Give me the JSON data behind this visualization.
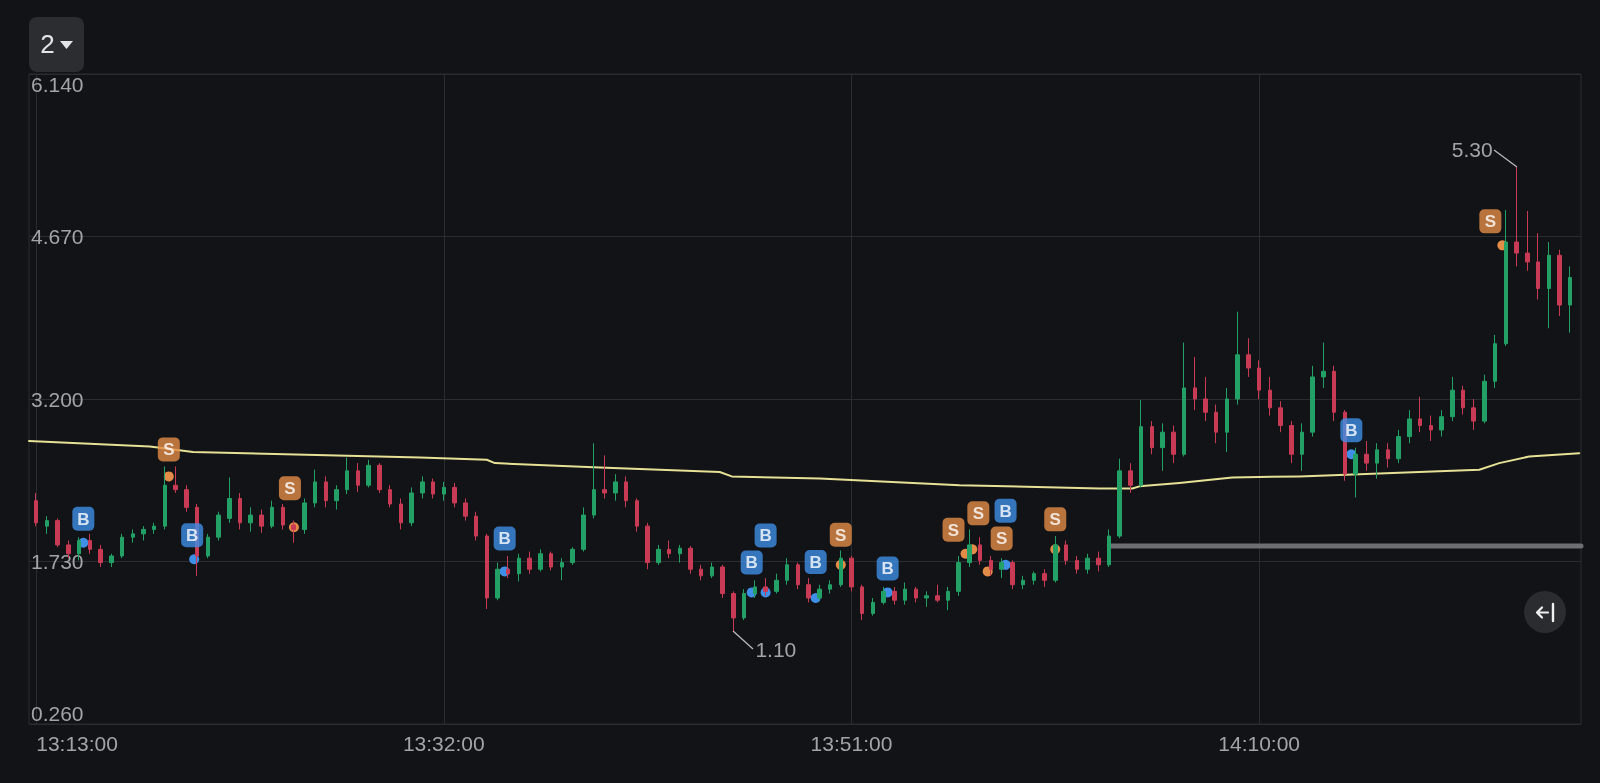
{
  "chart_data": {
    "type": "candlestick",
    "x": [
      13.2167,
      13.225,
      13.2333,
      13.2417,
      13.25,
      13.2583,
      13.2667,
      13.275,
      13.2833,
      13.2917,
      13.3,
      13.3083,
      13.3167,
      13.325,
      13.3333,
      13.3417,
      13.35,
      13.3583,
      13.3667,
      13.375,
      13.3833,
      13.3917,
      13.4,
      13.4083,
      13.4167,
      13.425,
      13.4333,
      13.4417,
      13.45,
      13.4583,
      13.4667,
      13.475,
      13.4833,
      13.4917,
      13.5,
      13.5083,
      13.5167,
      13.525,
      13.5333,
      13.5417,
      13.55,
      13.5583,
      13.5667,
      13.575,
      13.5833,
      13.5917,
      13.6,
      13.6083,
      13.6167,
      13.625,
      13.6333,
      13.6417,
      13.65,
      13.6583,
      13.6667,
      13.675,
      13.6833,
      13.6917,
      13.7,
      13.7083,
      13.7167,
      13.725,
      13.7333,
      13.7417,
      13.75,
      13.7583,
      13.7667,
      13.775,
      13.7833,
      13.7917,
      13.8,
      13.8083,
      13.8167,
      13.825,
      13.8333,
      13.8417,
      13.85,
      13.8583,
      13.8667,
      13.875,
      13.8833,
      13.8917,
      13.9,
      13.9083,
      13.9167,
      13.925,
      13.9333,
      13.9417,
      13.95,
      13.9583,
      13.9667,
      13.975,
      13.9833,
      13.9917,
      14.0,
      14.0083,
      14.0167,
      14.025,
      14.0333,
      14.0417,
      14.05,
      14.0583,
      14.0667,
      14.075,
      14.0833,
      14.0917,
      14.1,
      14.1083,
      14.1167,
      14.125,
      14.1333,
      14.1417,
      14.15,
      14.1583,
      14.1667,
      14.175,
      14.1833,
      14.1917,
      14.2,
      14.2083,
      14.2167,
      14.225,
      14.2333,
      14.2417,
      14.25,
      14.2583,
      14.2667,
      14.275,
      14.2833,
      14.2917,
      14.3,
      14.3083,
      14.3167,
      14.325,
      14.3333,
      14.3417,
      14.35,
      14.3583,
      14.3667,
      14.375,
      14.3833,
      14.3917,
      14.4,
      14.4083
    ],
    "ohlc": [
      [
        2.28,
        2.35,
        2.05,
        2.08
      ],
      [
        2.05,
        2.14,
        1.98,
        2.1
      ],
      [
        2.1,
        2.12,
        1.86,
        1.88
      ],
      [
        1.88,
        1.92,
        1.76,
        1.8
      ],
      [
        1.8,
        1.95,
        1.74,
        1.92
      ],
      [
        1.92,
        1.98,
        1.8,
        1.84
      ],
      [
        1.84,
        1.88,
        1.68,
        1.72
      ],
      [
        1.72,
        1.8,
        1.68,
        1.78
      ],
      [
        1.78,
        1.98,
        1.76,
        1.95
      ],
      [
        1.95,
        2.02,
        1.9,
        1.98
      ],
      [
        1.98,
        2.05,
        1.92,
        2.02
      ],
      [
        2.02,
        2.08,
        1.98,
        2.05
      ],
      [
        2.05,
        2.59,
        2.02,
        2.42
      ],
      [
        2.42,
        2.59,
        2.35,
        2.38
      ],
      [
        2.38,
        2.42,
        2.18,
        2.22
      ],
      [
        2.22,
        2.25,
        1.6,
        1.78
      ],
      [
        1.78,
        1.98,
        1.76,
        1.95
      ],
      [
        1.95,
        2.18,
        1.92,
        2.15
      ],
      [
        2.12,
        2.49,
        2.08,
        2.3
      ],
      [
        2.3,
        2.35,
        2.02,
        2.08
      ],
      [
        2.08,
        2.22,
        2.0,
        2.15
      ],
      [
        2.15,
        2.2,
        1.99,
        2.05
      ],
      [
        2.05,
        2.28,
        2.03,
        2.22
      ],
      [
        2.22,
        2.25,
        2.02,
        2.06
      ],
      [
        2.06,
        2.1,
        1.9,
        2.02
      ],
      [
        2.02,
        2.3,
        1.98,
        2.26
      ],
      [
        2.26,
        2.56,
        2.22,
        2.45
      ],
      [
        2.45,
        2.5,
        2.22,
        2.28
      ],
      [
        2.28,
        2.42,
        2.2,
        2.38
      ],
      [
        2.38,
        2.67,
        2.34,
        2.55
      ],
      [
        2.55,
        2.62,
        2.36,
        2.42
      ],
      [
        2.42,
        2.65,
        2.4,
        2.6
      ],
      [
        2.6,
        2.62,
        2.35,
        2.38
      ],
      [
        2.38,
        2.42,
        2.22,
        2.25
      ],
      [
        2.25,
        2.3,
        2.02,
        2.08
      ],
      [
        2.08,
        2.4,
        2.05,
        2.35
      ],
      [
        2.35,
        2.5,
        2.3,
        2.45
      ],
      [
        2.45,
        2.48,
        2.3,
        2.34
      ],
      [
        2.34,
        2.45,
        2.28,
        2.4
      ],
      [
        2.4,
        2.44,
        2.22,
        2.26
      ],
      [
        2.26,
        2.3,
        2.1,
        2.14
      ],
      [
        2.14,
        2.18,
        1.92,
        1.96
      ],
      [
        1.96,
        1.98,
        1.3,
        1.4
      ],
      [
        1.4,
        1.72,
        1.38,
        1.66
      ],
      [
        1.66,
        1.78,
        1.58,
        1.62
      ],
      [
        1.62,
        1.8,
        1.55,
        1.76
      ],
      [
        1.76,
        1.82,
        1.62,
        1.66
      ],
      [
        1.66,
        1.84,
        1.64,
        1.8
      ],
      [
        1.8,
        1.82,
        1.65,
        1.68
      ],
      [
        1.68,
        1.76,
        1.56,
        1.72
      ],
      [
        1.72,
        1.86,
        1.7,
        1.84
      ],
      [
        1.84,
        2.22,
        1.82,
        2.15
      ],
      [
        2.15,
        2.8,
        2.12,
        2.38
      ],
      [
        2.38,
        2.69,
        2.3,
        2.35
      ],
      [
        2.35,
        2.52,
        2.28,
        2.45
      ],
      [
        2.45,
        2.5,
        2.22,
        2.28
      ],
      [
        2.28,
        2.3,
        2.0,
        2.05
      ],
      [
        2.05,
        2.08,
        1.66,
        1.72
      ],
      [
        1.72,
        1.88,
        1.7,
        1.84
      ],
      [
        1.84,
        1.92,
        1.76,
        1.8
      ],
      [
        1.8,
        1.88,
        1.72,
        1.85
      ],
      [
        1.85,
        1.87,
        1.62,
        1.66
      ],
      [
        1.66,
        1.7,
        1.56,
        1.6
      ],
      [
        1.6,
        1.72,
        1.58,
        1.68
      ],
      [
        1.68,
        1.7,
        1.4,
        1.44
      ],
      [
        1.44,
        1.46,
        1.1,
        1.22
      ],
      [
        1.22,
        1.48,
        1.2,
        1.44
      ],
      [
        1.44,
        1.56,
        1.4,
        1.5
      ],
      [
        1.5,
        1.58,
        1.42,
        1.46
      ],
      [
        1.46,
        1.62,
        1.44,
        1.56
      ],
      [
        1.56,
        1.76,
        1.52,
        1.7
      ],
      [
        1.7,
        1.72,
        1.48,
        1.52
      ],
      [
        1.52,
        1.58,
        1.36,
        1.4
      ],
      [
        1.4,
        1.52,
        1.38,
        1.48
      ],
      [
        1.48,
        1.56,
        1.44,
        1.52
      ],
      [
        1.52,
        1.83,
        1.5,
        1.76
      ],
      [
        1.76,
        1.78,
        1.46,
        1.5
      ],
      [
        1.5,
        1.52,
        1.2,
        1.26
      ],
      [
        1.26,
        1.4,
        1.24,
        1.36
      ],
      [
        1.36,
        1.5,
        1.34,
        1.46
      ],
      [
        1.46,
        1.5,
        1.34,
        1.38
      ],
      [
        1.38,
        1.54,
        1.34,
        1.48
      ],
      [
        1.48,
        1.5,
        1.36,
        1.4
      ],
      [
        1.4,
        1.46,
        1.32,
        1.42
      ],
      [
        1.42,
        1.52,
        1.36,
        1.38
      ],
      [
        1.38,
        1.5,
        1.29,
        1.46
      ],
      [
        1.46,
        1.78,
        1.42,
        1.72
      ],
      [
        1.72,
        2.02,
        1.68,
        1.88
      ],
      [
        1.88,
        1.95,
        1.7,
        1.74
      ],
      [
        1.74,
        1.78,
        1.6,
        1.66
      ],
      [
        1.66,
        1.76,
        1.58,
        1.72
      ],
      [
        1.72,
        1.74,
        1.48,
        1.52
      ],
      [
        1.52,
        1.6,
        1.48,
        1.56
      ],
      [
        1.56,
        1.64,
        1.52,
        1.62
      ],
      [
        1.62,
        1.66,
        1.5,
        1.56
      ],
      [
        1.56,
        1.96,
        1.54,
        1.88
      ],
      [
        1.88,
        1.92,
        1.7,
        1.74
      ],
      [
        1.74,
        1.78,
        1.62,
        1.66
      ],
      [
        1.66,
        1.8,
        1.62,
        1.76
      ],
      [
        1.76,
        1.82,
        1.64,
        1.7
      ],
      [
        1.7,
        2.02,
        1.68,
        1.96
      ],
      [
        1.96,
        2.66,
        1.94,
        2.55
      ],
      [
        2.55,
        2.62,
        2.35,
        2.42
      ],
      [
        2.42,
        3.19,
        2.4,
        2.95
      ],
      [
        2.95,
        3.0,
        2.7,
        2.76
      ],
      [
        2.76,
        2.98,
        2.55,
        2.9
      ],
      [
        2.9,
        2.96,
        2.62,
        2.7
      ],
      [
        2.7,
        3.71,
        2.68,
        3.3
      ],
      [
        3.3,
        3.58,
        3.1,
        3.2
      ],
      [
        3.2,
        3.4,
        3.0,
        3.08
      ],
      [
        3.08,
        3.15,
        2.8,
        2.9
      ],
      [
        2.9,
        3.3,
        2.72,
        3.2
      ],
      [
        3.2,
        3.99,
        3.15,
        3.6
      ],
      [
        3.6,
        3.75,
        3.4,
        3.48
      ],
      [
        3.48,
        3.55,
        3.2,
        3.28
      ],
      [
        3.28,
        3.4,
        3.05,
        3.12
      ],
      [
        3.12,
        3.18,
        2.9,
        2.96
      ],
      [
        2.96,
        3.0,
        2.62,
        2.7
      ],
      [
        2.7,
        2.98,
        2.55,
        2.9
      ],
      [
        2.9,
        3.5,
        2.86,
        3.4
      ],
      [
        3.4,
        3.71,
        3.3,
        3.45
      ],
      [
        3.45,
        3.5,
        3.0,
        3.08
      ],
      [
        3.08,
        3.1,
        2.46,
        2.52
      ],
      [
        2.52,
        2.76,
        2.31,
        2.7
      ],
      [
        2.7,
        2.82,
        2.55,
        2.62
      ],
      [
        2.62,
        2.8,
        2.48,
        2.74
      ],
      [
        2.74,
        2.8,
        2.58,
        2.66
      ],
      [
        2.66,
        2.92,
        2.62,
        2.86
      ],
      [
        2.86,
        3.1,
        2.8,
        3.02
      ],
      [
        3.02,
        3.22,
        2.9,
        2.96
      ],
      [
        2.96,
        3.05,
        2.82,
        2.92
      ],
      [
        2.92,
        3.1,
        2.86,
        3.04
      ],
      [
        3.04,
        3.4,
        3.0,
        3.28
      ],
      [
        3.28,
        3.32,
        3.06,
        3.12
      ],
      [
        3.12,
        3.2,
        2.92,
        3.0
      ],
      [
        3.0,
        3.42,
        2.98,
        3.36
      ],
      [
        3.36,
        3.78,
        3.3,
        3.7
      ],
      [
        3.7,
        4.91,
        3.68,
        4.62
      ],
      [
        4.62,
        5.3,
        4.4,
        4.52
      ],
      [
        4.52,
        4.9,
        4.36,
        4.44
      ],
      [
        4.44,
        4.7,
        4.1,
        4.2
      ],
      [
        4.2,
        4.62,
        3.84,
        4.5
      ],
      [
        4.5,
        4.55,
        3.95,
        4.05
      ],
      [
        4.05,
        4.4,
        3.8,
        4.3
      ]
    ],
    "colors": [
      "#c93a55",
      "#22a065",
      "#c93a55",
      "#c93a55",
      "#22a065",
      "#c93a55",
      "#c93a55",
      "#22a065",
      "#22a065",
      "#22a065",
      "#22a065",
      "#22a065",
      "#22a065",
      "#c93a55",
      "#c93a55",
      "#c93a55",
      "#22a065",
      "#22a065",
      "#22a065",
      "#c93a55",
      "#22a065",
      "#c93a55",
      "#22a065",
      "#c93a55",
      "#c93a55",
      "#22a065",
      "#22a065",
      "#c93a55",
      "#22a065",
      "#22a065",
      "#c93a55",
      "#22a065",
      "#c93a55",
      "#c93a55",
      "#c93a55",
      "#22a065",
      "#22a065",
      "#c93a55",
      "#22a065",
      "#c93a55",
      "#c93a55",
      "#c93a55",
      "#c93a55",
      "#22a065",
      "#c93a55",
      "#22a065",
      "#c93a55",
      "#22a065",
      "#c93a55",
      "#22a065",
      "#22a065",
      "#22a065",
      "#22a065",
      "#c93a55",
      "#22a065",
      "#c93a55",
      "#c93a55",
      "#c93a55",
      "#22a065",
      "#c93a55",
      "#22a065",
      "#c93a55",
      "#c93a55",
      "#22a065",
      "#c93a55",
      "#c93a55",
      "#22a065",
      "#22a065",
      "#c93a55",
      "#22a065",
      "#22a065",
      "#c93a55",
      "#c93a55",
      "#22a065",
      "#22a065",
      "#22a065",
      "#c93a55",
      "#c93a55",
      "#22a065",
      "#22a065",
      "#c93a55",
      "#22a065",
      "#c93a55",
      "#22a065",
      "#c93a55",
      "#22a065",
      "#22a065",
      "#22a065",
      "#c93a55",
      "#c93a55",
      "#22a065",
      "#c93a55",
      "#22a065",
      "#22a065",
      "#c93a55",
      "#22a065",
      "#c93a55",
      "#c93a55",
      "#22a065",
      "#c93a55",
      "#22a065",
      "#22a065",
      "#c93a55",
      "#22a065",
      "#c93a55",
      "#22a065",
      "#c93a55",
      "#22a065",
      "#c93a55",
      "#c93a55",
      "#c93a55",
      "#22a065",
      "#22a065",
      "#c93a55",
      "#c93a55",
      "#c93a55",
      "#c93a55",
      "#c93a55",
      "#22a065",
      "#22a065",
      "#22a065",
      "#c93a55",
      "#c93a55",
      "#22a065",
      "#c93a55",
      "#22a065",
      "#c93a55",
      "#22a065",
      "#22a065",
      "#c93a55",
      "#c93a55",
      "#22a065",
      "#22a065",
      "#c93a55",
      "#c93a55",
      "#22a065",
      "#22a065",
      "#22a065",
      "#c93a55",
      "#c93a55",
      "#c93a55",
      "#22a065",
      "#c93a55",
      "#22a065"
    ],
    "series": [
      {
        "type": "line",
        "color": "#e6e196",
        "x": [
          13.2111,
          13.305,
          13.3385,
          13.5148,
          13.5667,
          13.573,
          13.6545,
          13.7477,
          13.757,
          13.8253,
          13.934,
          14.0426,
          14.0682,
          14.0737,
          14.1047,
          14.1458,
          14.1978,
          14.3377,
          14.3532,
          14.3765,
          14.4153
        ],
        "values": [
          2.82,
          2.77,
          2.72,
          2.67,
          2.65,
          2.62,
          2.58,
          2.54,
          2.5,
          2.48,
          2.42,
          2.39,
          2.39,
          2.41,
          2.44,
          2.49,
          2.5,
          2.56,
          2.62,
          2.68,
          2.71
        ]
      },
      {
        "type": "line",
        "color": "#6e6f72",
        "x": [
          14.0503,
          14.4167
        ],
        "values": [
          1.87,
          1.87
        ]
      },
      {
        "type": "scatter",
        "color": "#3f8fe6",
        "marker": "circle",
        "x": [
          13.2533,
          13.3394,
          13.5806,
          13.7725,
          13.7833,
          13.8222,
          13.8781,
          13.9697,
          14.2383
        ],
        "values": [
          1.9,
          1.75,
          1.64,
          1.45,
          1.45,
          1.4,
          1.45,
          1.7,
          2.7
        ],
        "value_labels": [
          "B",
          "B",
          "B",
          "B",
          "B",
          "B",
          "B",
          "B",
          "B"
        ]
      },
      {
        "type": "scatter",
        "color": "#e38c47",
        "marker": "circle",
        "x": [
          13.3197,
          13.4169,
          13.8417,
          13.9386,
          13.9439,
          13.9558,
          14.0083,
          14.3556
        ],
        "values": [
          2.5,
          2.04,
          1.7,
          1.8,
          1.84,
          1.64,
          1.84,
          4.59
        ],
        "value_labels": [
          "S",
          "S",
          "S",
          "S",
          "S",
          "S",
          "S",
          "S"
        ]
      }
    ],
    "xlim": [
      13.2111,
      14.4167
    ],
    "xticks": [
      {
        "value": 13.2167,
        "label": "13:13:00"
      },
      {
        "value": 13.5333,
        "label": "13:32:00"
      },
      {
        "value": 13.85,
        "label": "13:51:00"
      },
      {
        "value": 14.1667,
        "label": "14:10:00"
      }
    ],
    "ylim": [
      0.26,
      6.14
    ],
    "yticks": [
      {
        "value": 0.26,
        "label": "0.260"
      },
      {
        "value": 1.73,
        "label": "1.730"
      },
      {
        "value": 3.2,
        "label": "3.200"
      },
      {
        "value": 4.67,
        "label": "4.670"
      },
      {
        "value": 6.14,
        "label": "6.140"
      }
    ],
    "grid": true,
    "annotations": [
      "2",
      {
        "text": "5.30",
        "x": 14.3667,
        "y": 5.3
      },
      {
        "text": "1.10",
        "x": 13.7583,
        "y": 1.1
      }
    ]
  }
}
